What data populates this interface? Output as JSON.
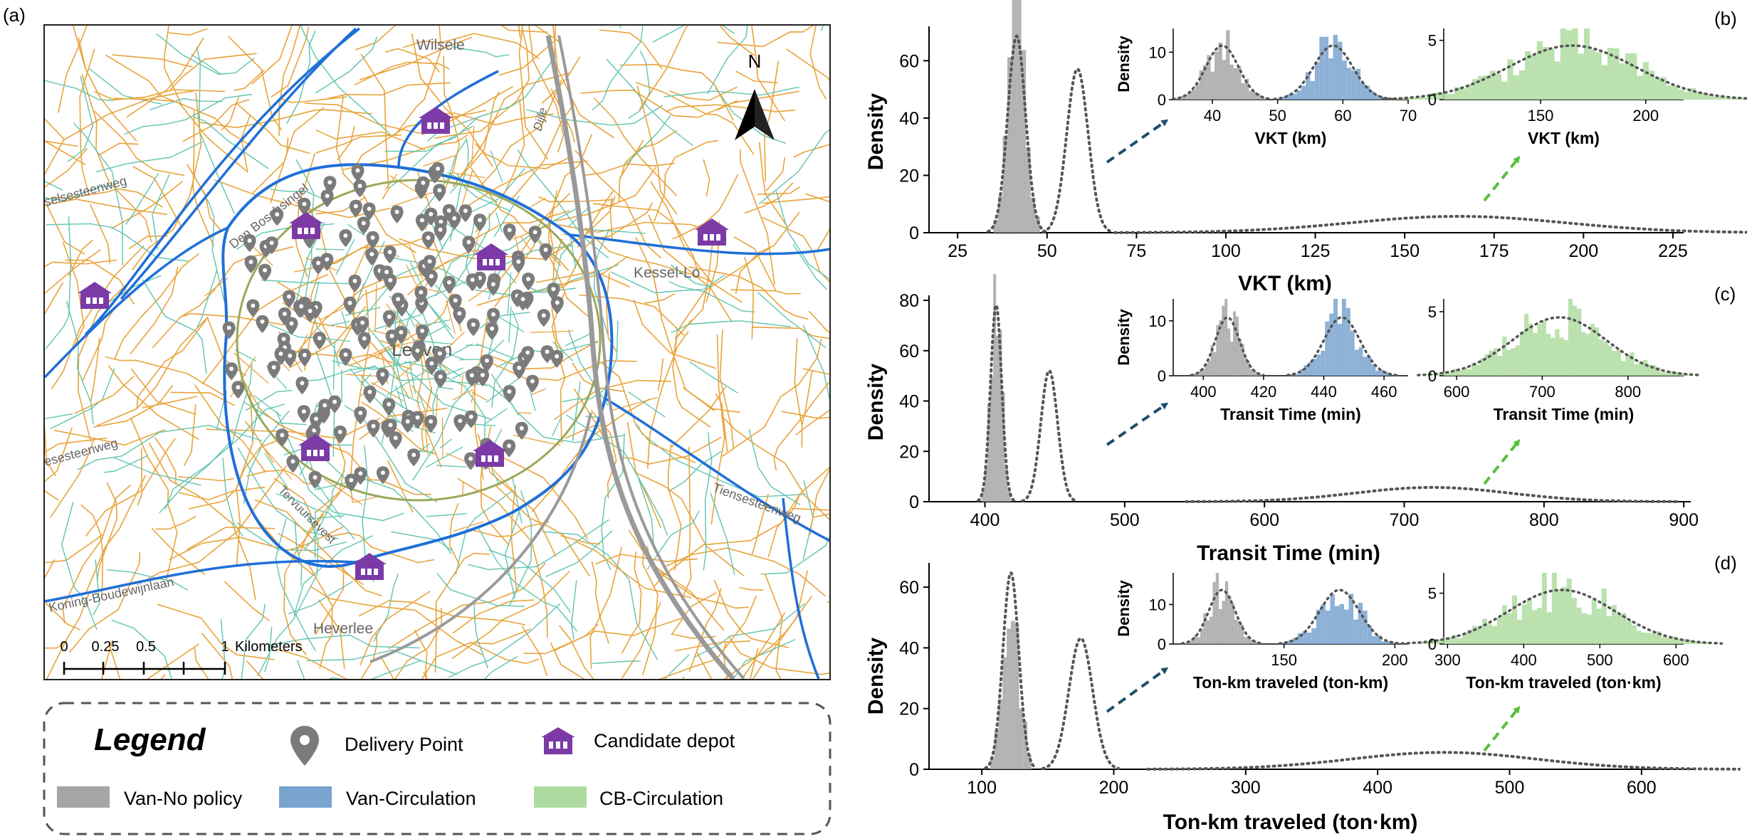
{
  "panels": {
    "a": "(a)",
    "b": "(b)",
    "c": "(c)",
    "d": "(d)"
  },
  "map": {
    "north": "N",
    "place_labels": {
      "wilsele": "Wilsele",
      "leuven": "Leuven",
      "kessel_lo": "Kessel-Lo",
      "heverlee": "Heverlee",
      "dijle": "Dijle",
      "den_boschsingel": "Den Boschsingel",
      "selsesteenweg": "selsesteenweg",
      "esesteenweg": "esesteenweg",
      "koning_boudewijnlaan": "Koning-Boudewijnlaan",
      "tiensesteenweg": "Tiensesteenweg",
      "tervuursevest": "Tervuursevest"
    },
    "scale": {
      "ticks": [
        "0",
        "0.25",
        "0.5",
        "1"
      ],
      "unit": "Kilometers"
    },
    "colors": {
      "road_orange": "#e8a33a",
      "road_teal": "#5ec4b0",
      "ring": "#1f6fd8",
      "rail": "#9a9a9a",
      "marker": "#7b7b7b",
      "depot": "#7b3aa6"
    }
  },
  "legend": {
    "title": "Legend",
    "delivery_point": "Delivery Point",
    "candidate_depot": "Candidate depot",
    "van_no_policy": "Van-No policy",
    "van_circulation": "Van-Circulation",
    "cb_circulation": "CB-Circulation"
  },
  "colors": {
    "van_no_policy": "#a6a6a6",
    "van_circulation": "#7aa3cf",
    "cb_circulation": "#aedca0",
    "arrow_blue": "#1f4e6b",
    "arrow_green": "#56c03a",
    "kde": "#555555"
  },
  "chart_data": [
    {
      "panel": "b",
      "type": "histogram",
      "xlabel": "VKT (km)",
      "ylabel": "Density",
      "xlim": [
        17,
        228
      ],
      "ylim": [
        0,
        72
      ],
      "xticks": [
        25,
        50,
        75,
        100,
        125,
        150,
        175,
        200,
        225
      ],
      "yticks": [
        0,
        20,
        40,
        60
      ],
      "series": [
        {
          "name": "Van-No policy",
          "mean": 41.5,
          "sd": 2.5
        },
        {
          "name": "Van-Circulation",
          "mean": 58.5,
          "sd": 3.0
        },
        {
          "name": "CB-Circulation",
          "mean": 165,
          "sd": 30
        }
      ],
      "insets": [
        {
          "xlabel": "VKT (km)",
          "ylabel": "Density",
          "xlim": [
            34,
            70
          ],
          "ylim": [
            0,
            15
          ],
          "xticks": [
            40,
            50,
            60,
            70
          ],
          "yticks": [
            0,
            10
          ],
          "series": [
            0,
            1
          ]
        },
        {
          "xlabel": "VKT (km)",
          "ylabel": "",
          "xlim": [
            104,
            218
          ],
          "ylim": [
            0,
            6
          ],
          "xticks": [
            150,
            200
          ],
          "yticks": [
            0,
            5
          ],
          "series": [
            2
          ]
        }
      ]
    },
    {
      "panel": "c",
      "type": "histogram",
      "xlabel": "Transit Time (min)",
      "ylabel": "Density",
      "xlim": [
        360,
        905
      ],
      "ylim": [
        0,
        82
      ],
      "xticks": [
        400,
        500,
        600,
        700,
        800,
        900
      ],
      "yticks": [
        0,
        20,
        40,
        60,
        80
      ],
      "series": [
        {
          "name": "Van-No policy",
          "mean": 408,
          "sd": 4
        },
        {
          "name": "Van-Circulation",
          "mean": 446,
          "sd": 6
        },
        {
          "name": "CB-Circulation",
          "mean": 720,
          "sd": 55
        }
      ],
      "insets": [
        {
          "xlabel": "Transit Time (min)",
          "ylabel": "Density",
          "xlim": [
            390,
            468
          ],
          "ylim": [
            0,
            14
          ],
          "xticks": [
            400,
            420,
            440,
            460
          ],
          "yticks": [
            0,
            10
          ],
          "series": [
            0,
            1
          ]
        },
        {
          "xlabel": "Transit Time (min)",
          "ylabel": "",
          "xlim": [
            585,
            865
          ],
          "ylim": [
            0,
            6
          ],
          "xticks": [
            600,
            700,
            800
          ],
          "yticks": [
            0,
            5
          ],
          "series": [
            2
          ]
        }
      ]
    },
    {
      "panel": "d",
      "type": "histogram",
      "xlabel": "Ton-km traveled (ton·km)",
      "ylabel": "Density",
      "xlim": [
        60,
        640
      ],
      "ylim": [
        0,
        68
      ],
      "xticks": [
        100,
        200,
        300,
        400,
        500,
        600
      ],
      "yticks": [
        0,
        20,
        40,
        60
      ],
      "series": [
        {
          "name": "Van-No policy",
          "mean": 122,
          "sd": 6
        },
        {
          "name": "Van-Circulation",
          "mean": 175,
          "sd": 9
        },
        {
          "name": "CB-Circulation",
          "mean": 450,
          "sd": 70
        }
      ],
      "insets": [
        {
          "xlabel": "Ton-km traveled (ton-km)",
          "ylabel": "Density",
          "xlim": [
            100,
            206
          ],
          "ylim": [
            0,
            18
          ],
          "xticks": [
            150,
            200
          ],
          "yticks": [
            0,
            10
          ],
          "series": [
            0,
            1
          ]
        },
        {
          "xlabel": "Ton-km traveled (ton·km)",
          "ylabel": "",
          "xlim": [
            295,
            610
          ],
          "ylim": [
            0,
            7
          ],
          "xticks": [
            300,
            400,
            500,
            600
          ],
          "yticks": [
            0,
            5
          ],
          "series": [
            2
          ]
        }
      ]
    }
  ]
}
